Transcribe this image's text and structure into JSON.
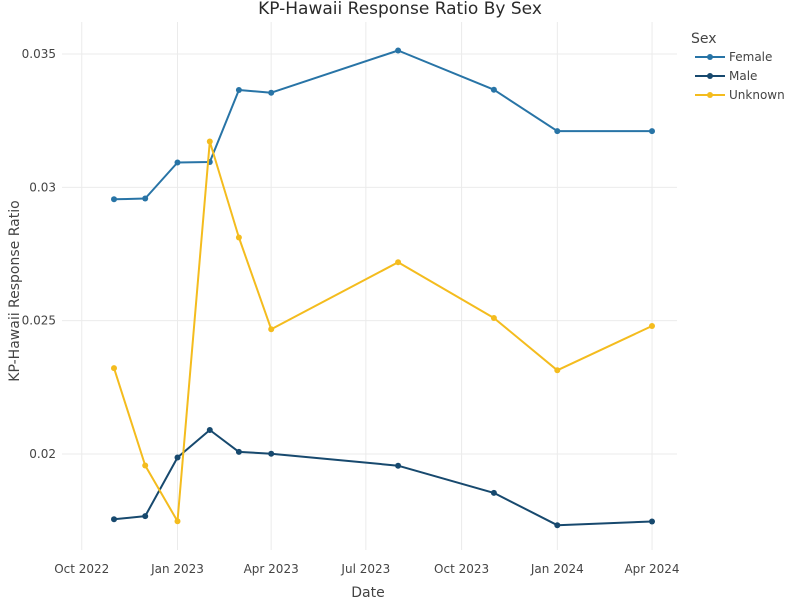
{
  "chart_data": {
    "type": "line",
    "title": "KP-Hawaii Response Ratio By Sex",
    "xlabel": "Date",
    "ylabel": "KP-Hawaii Response Ratio",
    "grid": true,
    "legend_title": "Sex",
    "legend_position": "top-right",
    "x_ticks": [
      {
        "date": "2022-10-01",
        "label": "Oct 2022"
      },
      {
        "date": "2023-01-01",
        "label": "Jan 2023"
      },
      {
        "date": "2023-04-01",
        "label": "Apr 2023"
      },
      {
        "date": "2023-07-01",
        "label": "Jul 2023"
      },
      {
        "date": "2023-10-01",
        "label": "Oct 2023"
      },
      {
        "date": "2024-01-01",
        "label": "Jan 2024"
      },
      {
        "date": "2024-04-01",
        "label": "Apr 2024"
      }
    ],
    "y_ticks": [
      {
        "value": 0.02,
        "label": "0.02"
      },
      {
        "value": 0.025,
        "label": "0.025"
      },
      {
        "value": 0.03,
        "label": "0.03"
      },
      {
        "value": 0.035,
        "label": "0.035"
      }
    ],
    "xlim": [
      "2022-09-12",
      "2024-04-25"
    ],
    "ylim": [
      0.0164,
      0.0362
    ],
    "x": [
      "2022-11-01",
      "2022-12-01",
      "2023-01-01",
      "2023-02-01",
      "2023-03-01",
      "2023-04-01",
      "2023-08-01",
      "2023-11-01",
      "2024-01-01",
      "2024-04-01"
    ],
    "series": [
      {
        "name": "Female",
        "color": "#2874a6",
        "values": [
          0.02955,
          0.02958,
          0.03093,
          0.03095,
          0.03365,
          0.03355,
          0.03513,
          0.03366,
          0.03211,
          0.03211
        ]
      },
      {
        "name": "Male",
        "color": "#17496e",
        "values": [
          0.01755,
          0.01767,
          0.01987,
          0.0209,
          0.02008,
          0.02001,
          0.01956,
          0.01854,
          0.01733,
          0.01747
        ]
      },
      {
        "name": "Unknown",
        "color": "#f4bc1e",
        "values": [
          0.02322,
          0.01957,
          0.01748,
          0.03172,
          0.02812,
          0.02468,
          0.02719,
          0.0251,
          0.02314,
          0.0248
        ]
      }
    ]
  }
}
